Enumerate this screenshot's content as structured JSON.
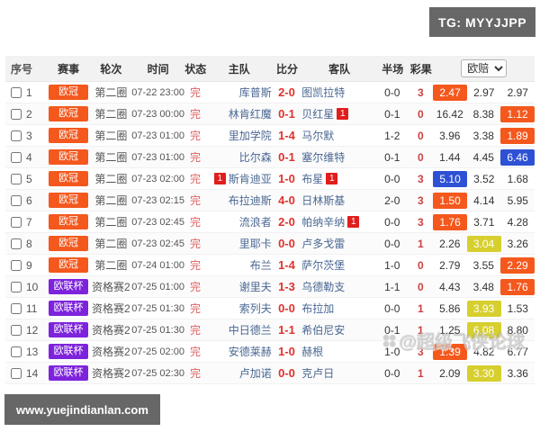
{
  "overlays": {
    "tg_label": "TG: MYYJJPP",
    "site_url": "www.yuejindianlan.com",
    "watermark_text": "@超级飞侠论球"
  },
  "colors": {
    "banner_bg": "#676767",
    "card_red": "#e11d1d",
    "league": {
      "ucl": "#f4581d",
      "uel": "#7e23dc"
    },
    "odds": {
      "orange": "#f4581d",
      "blue": "#2e51d4",
      "yellow": "#d6cf2e"
    }
  },
  "table": {
    "headers": {
      "no": "序号",
      "league": "赛事",
      "round": "轮次",
      "time": "时间",
      "status": "状态",
      "home": "主队",
      "score": "比分",
      "away": "客队",
      "half": "半场",
      "result": "彩果"
    },
    "odds_select_value": "欧赔",
    "rows": [
      {
        "no": "1",
        "league": "欧冠",
        "lt": "ucl",
        "round": "第二圈",
        "time": "07-22 23:00",
        "status": "完",
        "home": "库普斯",
        "home_card": "",
        "score": "2-0",
        "away": "图凯拉特",
        "away_card": "",
        "half": "0-0",
        "result": "3",
        "odds": [
          {
            "v": "2.47",
            "hl": "orange"
          },
          {
            "v": "2.97",
            "hl": ""
          },
          {
            "v": "2.97",
            "hl": ""
          }
        ]
      },
      {
        "no": "2",
        "league": "欧冠",
        "lt": "ucl",
        "round": "第二圈",
        "time": "07-23 00:00",
        "status": "完",
        "home": "林肯红魔",
        "home_card": "",
        "score": "0-1",
        "away": "贝红星",
        "away_card": "1",
        "half": "0-1",
        "result": "0",
        "odds": [
          {
            "v": "16.42",
            "hl": ""
          },
          {
            "v": "8.38",
            "hl": ""
          },
          {
            "v": "1.12",
            "hl": "orange"
          }
        ]
      },
      {
        "no": "3",
        "league": "欧冠",
        "lt": "ucl",
        "round": "第二圈",
        "time": "07-23 01:00",
        "status": "完",
        "home": "里加学院",
        "home_card": "",
        "score": "1-4",
        "away": "马尔默",
        "away_card": "",
        "half": "1-2",
        "result": "0",
        "odds": [
          {
            "v": "3.96",
            "hl": ""
          },
          {
            "v": "3.38",
            "hl": ""
          },
          {
            "v": "1.89",
            "hl": "orange"
          }
        ]
      },
      {
        "no": "4",
        "league": "欧冠",
        "lt": "ucl",
        "round": "第二圈",
        "time": "07-23 01:00",
        "status": "完",
        "home": "比尔森",
        "home_card": "",
        "score": "0-1",
        "away": "塞尔维特",
        "away_card": "",
        "half": "0-1",
        "result": "0",
        "odds": [
          {
            "v": "1.44",
            "hl": ""
          },
          {
            "v": "4.45",
            "hl": ""
          },
          {
            "v": "6.46",
            "hl": "blue"
          }
        ]
      },
      {
        "no": "5",
        "league": "欧冠",
        "lt": "ucl",
        "round": "第二圈",
        "time": "07-23 02:00",
        "status": "完",
        "home": "斯肯迪亚",
        "home_card": "1",
        "score": "1-0",
        "away": "布星",
        "away_card": "1",
        "half": "0-0",
        "result": "3",
        "odds": [
          {
            "v": "5.10",
            "hl": "blue"
          },
          {
            "v": "3.52",
            "hl": ""
          },
          {
            "v": "1.68",
            "hl": ""
          }
        ]
      },
      {
        "no": "6",
        "league": "欧冠",
        "lt": "ucl",
        "round": "第二圈",
        "time": "07-23 02:15",
        "status": "完",
        "home": "布拉迪斯",
        "home_card": "",
        "score": "4-0",
        "away": "日林斯基",
        "away_card": "",
        "half": "2-0",
        "result": "3",
        "odds": [
          {
            "v": "1.50",
            "hl": "orange"
          },
          {
            "v": "4.14",
            "hl": ""
          },
          {
            "v": "5.95",
            "hl": ""
          }
        ]
      },
      {
        "no": "7",
        "league": "欧冠",
        "lt": "ucl",
        "round": "第二圈",
        "time": "07-23 02:45",
        "status": "完",
        "home": "流浪者",
        "home_card": "",
        "score": "2-0",
        "away": "帕纳辛纳",
        "away_card": "1",
        "half": "0-0",
        "result": "3",
        "odds": [
          {
            "v": "1.76",
            "hl": "orange"
          },
          {
            "v": "3.71",
            "hl": ""
          },
          {
            "v": "4.28",
            "hl": ""
          }
        ]
      },
      {
        "no": "8",
        "league": "欧冠",
        "lt": "ucl",
        "round": "第二圈",
        "time": "07-23 02:45",
        "status": "完",
        "home": "里耶卡",
        "home_card": "",
        "score": "0-0",
        "away": "卢多戈雷",
        "away_card": "",
        "half": "0-0",
        "result": "1",
        "odds": [
          {
            "v": "2.26",
            "hl": ""
          },
          {
            "v": "3.04",
            "hl": "yellow"
          },
          {
            "v": "3.26",
            "hl": ""
          }
        ]
      },
      {
        "no": "9",
        "league": "欧冠",
        "lt": "ucl",
        "round": "第二圈",
        "time": "07-24 01:00",
        "status": "完",
        "home": "布兰",
        "home_card": "",
        "score": "1-4",
        "away": "萨尔茨堡",
        "away_card": "",
        "half": "1-0",
        "result": "0",
        "odds": [
          {
            "v": "2.79",
            "hl": ""
          },
          {
            "v": "3.55",
            "hl": ""
          },
          {
            "v": "2.29",
            "hl": "orange"
          }
        ]
      },
      {
        "no": "10",
        "league": "欧联杯",
        "lt": "uel",
        "round": "资格赛2",
        "time": "07-25 01:00",
        "status": "完",
        "home": "谢里夫",
        "home_card": "",
        "score": "1-3",
        "away": "乌德勒支",
        "away_card": "",
        "half": "1-1",
        "result": "0",
        "odds": [
          {
            "v": "4.43",
            "hl": ""
          },
          {
            "v": "3.48",
            "hl": ""
          },
          {
            "v": "1.76",
            "hl": "orange"
          }
        ]
      },
      {
        "no": "11",
        "league": "欧联杯",
        "lt": "uel",
        "round": "资格赛2",
        "time": "07-25 01:30",
        "status": "完",
        "home": "索列夫",
        "home_card": "",
        "score": "0-0",
        "away": "布拉加",
        "away_card": "",
        "half": "0-0",
        "result": "1",
        "odds": [
          {
            "v": "5.86",
            "hl": ""
          },
          {
            "v": "3.93",
            "hl": "yellow"
          },
          {
            "v": "1.53",
            "hl": ""
          }
        ]
      },
      {
        "no": "12",
        "league": "欧联杯",
        "lt": "uel",
        "round": "资格赛2",
        "time": "07-25 01:30",
        "status": "完",
        "home": "中日德兰",
        "home_card": "",
        "score": "1-1",
        "away": "希伯尼安",
        "away_card": "",
        "half": "0-1",
        "result": "1",
        "odds": [
          {
            "v": "1.25",
            "hl": ""
          },
          {
            "v": "6.08",
            "hl": "yellow"
          },
          {
            "v": "8.80",
            "hl": ""
          }
        ]
      },
      {
        "no": "13",
        "league": "欧联杯",
        "lt": "uel",
        "round": "资格赛2",
        "time": "07-25 02:00",
        "status": "完",
        "home": "安德莱赫",
        "home_card": "",
        "score": "1-0",
        "away": "赫根",
        "away_card": "",
        "half": "1-0",
        "result": "3",
        "odds": [
          {
            "v": "1.39",
            "hl": "orange"
          },
          {
            "v": "4.82",
            "hl": ""
          },
          {
            "v": "6.77",
            "hl": ""
          }
        ]
      },
      {
        "no": "14",
        "league": "欧联杯",
        "lt": "uel",
        "round": "资格赛2",
        "time": "07-25 02:30",
        "status": "完",
        "home": "卢加诺",
        "home_card": "",
        "score": "0-0",
        "away": "克卢日",
        "away_card": "",
        "half": "0-0",
        "result": "1",
        "odds": [
          {
            "v": "2.09",
            "hl": ""
          },
          {
            "v": "3.30",
            "hl": "yellow"
          },
          {
            "v": "3.36",
            "hl": ""
          }
        ]
      }
    ]
  }
}
